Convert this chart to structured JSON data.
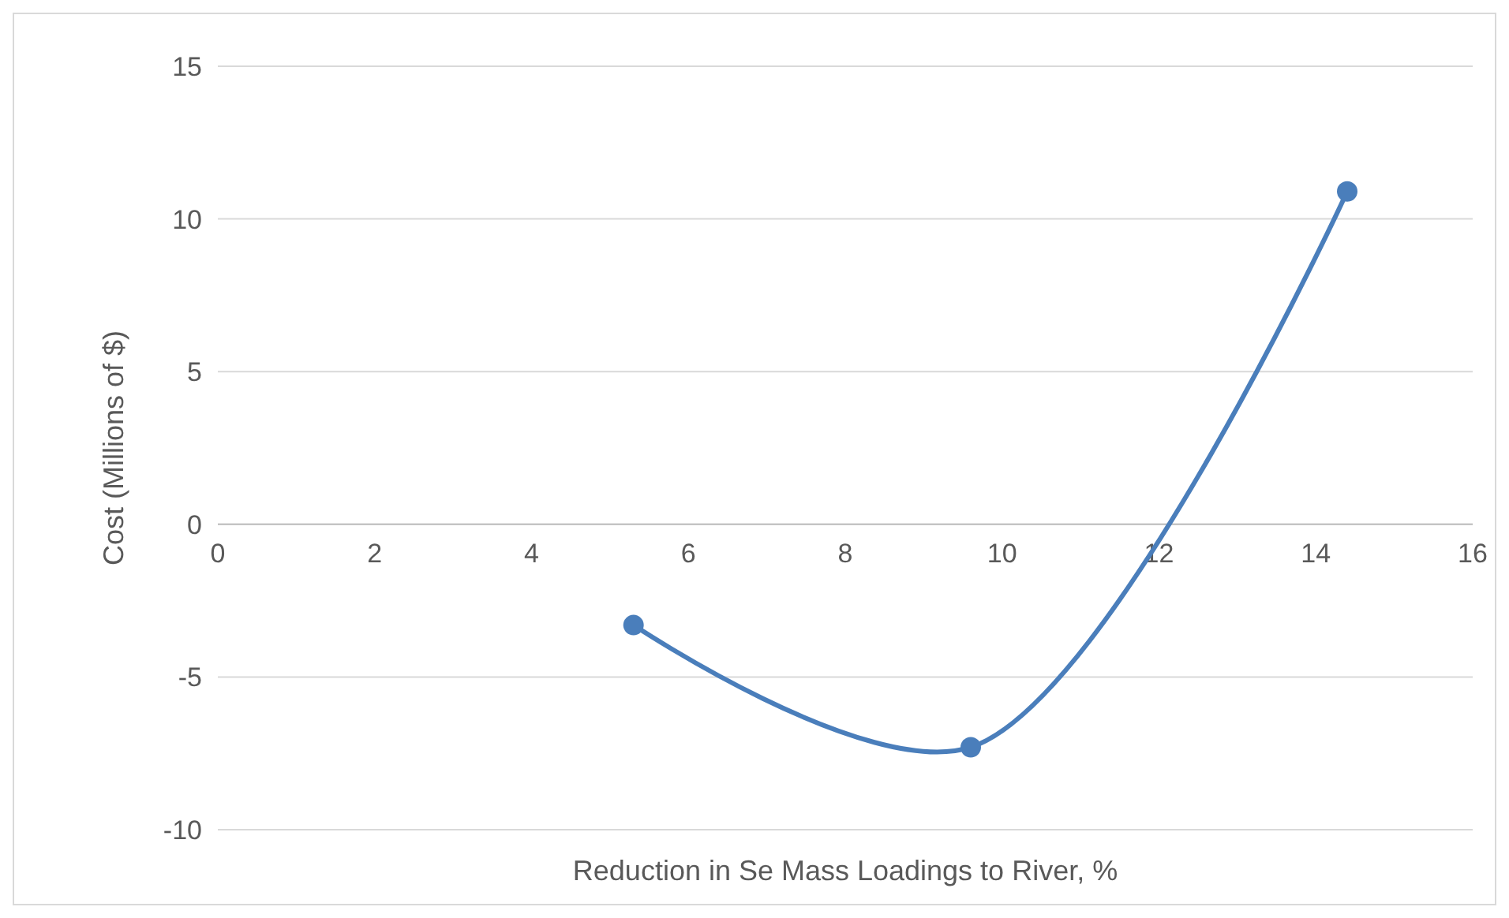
{
  "chart_data": {
    "type": "line",
    "xlabel": "Reduction in Se Mass Loadings to River, %",
    "ylabel": "Cost (Millions of $)",
    "x": [
      5.3,
      9.6,
      14.4
    ],
    "series": [
      {
        "color": "#4a7ebb",
        "values": [
          -3.3,
          -7.3,
          10.9
        ]
      }
    ],
    "xlim": [
      0,
      16
    ],
    "xticks": [
      0,
      2,
      4,
      6,
      8,
      10,
      12,
      14,
      16
    ],
    "ylim": [
      -10,
      15
    ],
    "yticks": [
      -10,
      -5,
      0,
      5,
      10,
      15
    ],
    "grid": "y",
    "marker": "circle",
    "line_style": "solid"
  }
}
